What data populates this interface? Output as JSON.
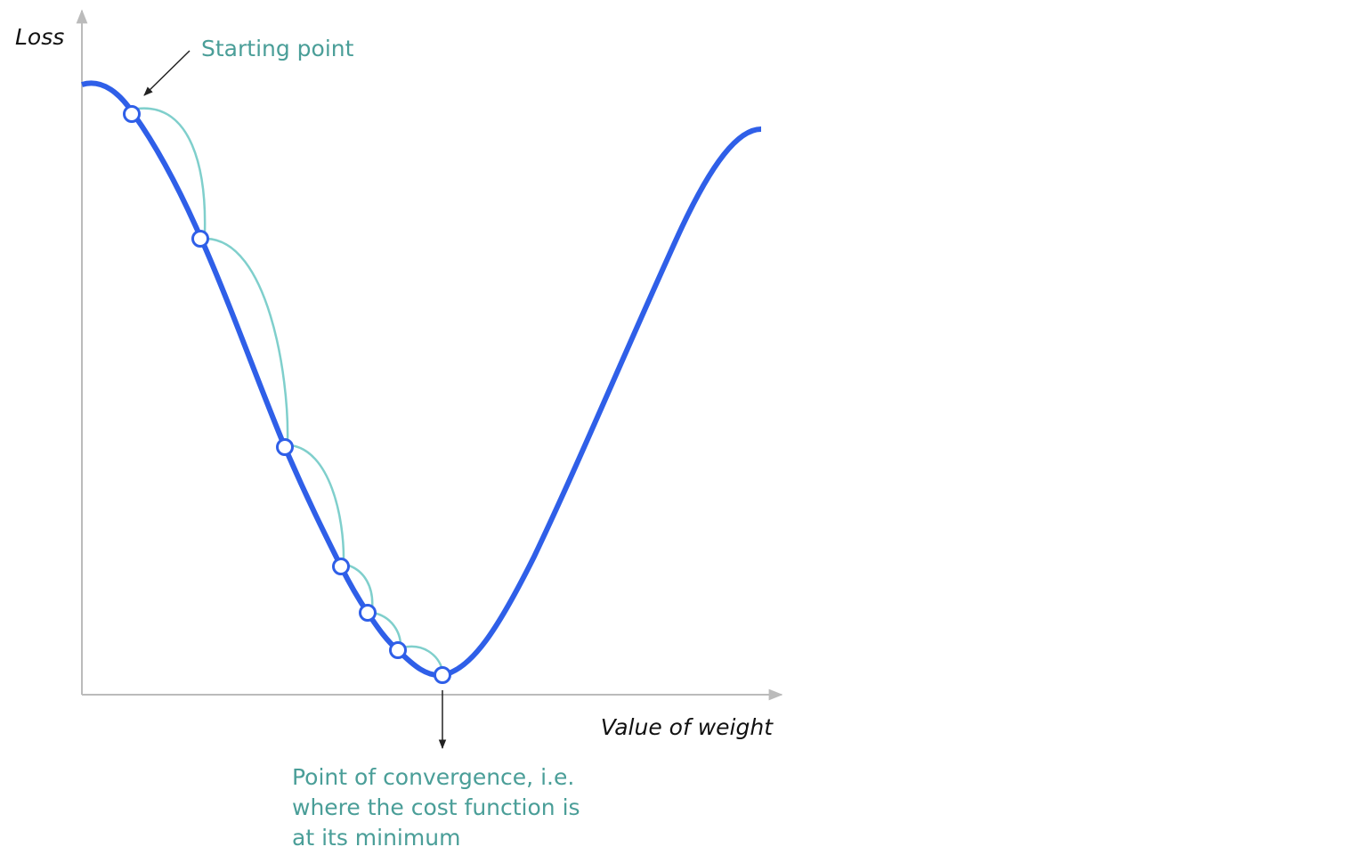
{
  "axes": {
    "y_label": "Loss",
    "x_label": "Value of weight"
  },
  "annotations": {
    "start": "Starting point",
    "convergence": [
      "Point of convergence, i.e.",
      "where the cost function is",
      "at its minimum"
    ]
  }
}
